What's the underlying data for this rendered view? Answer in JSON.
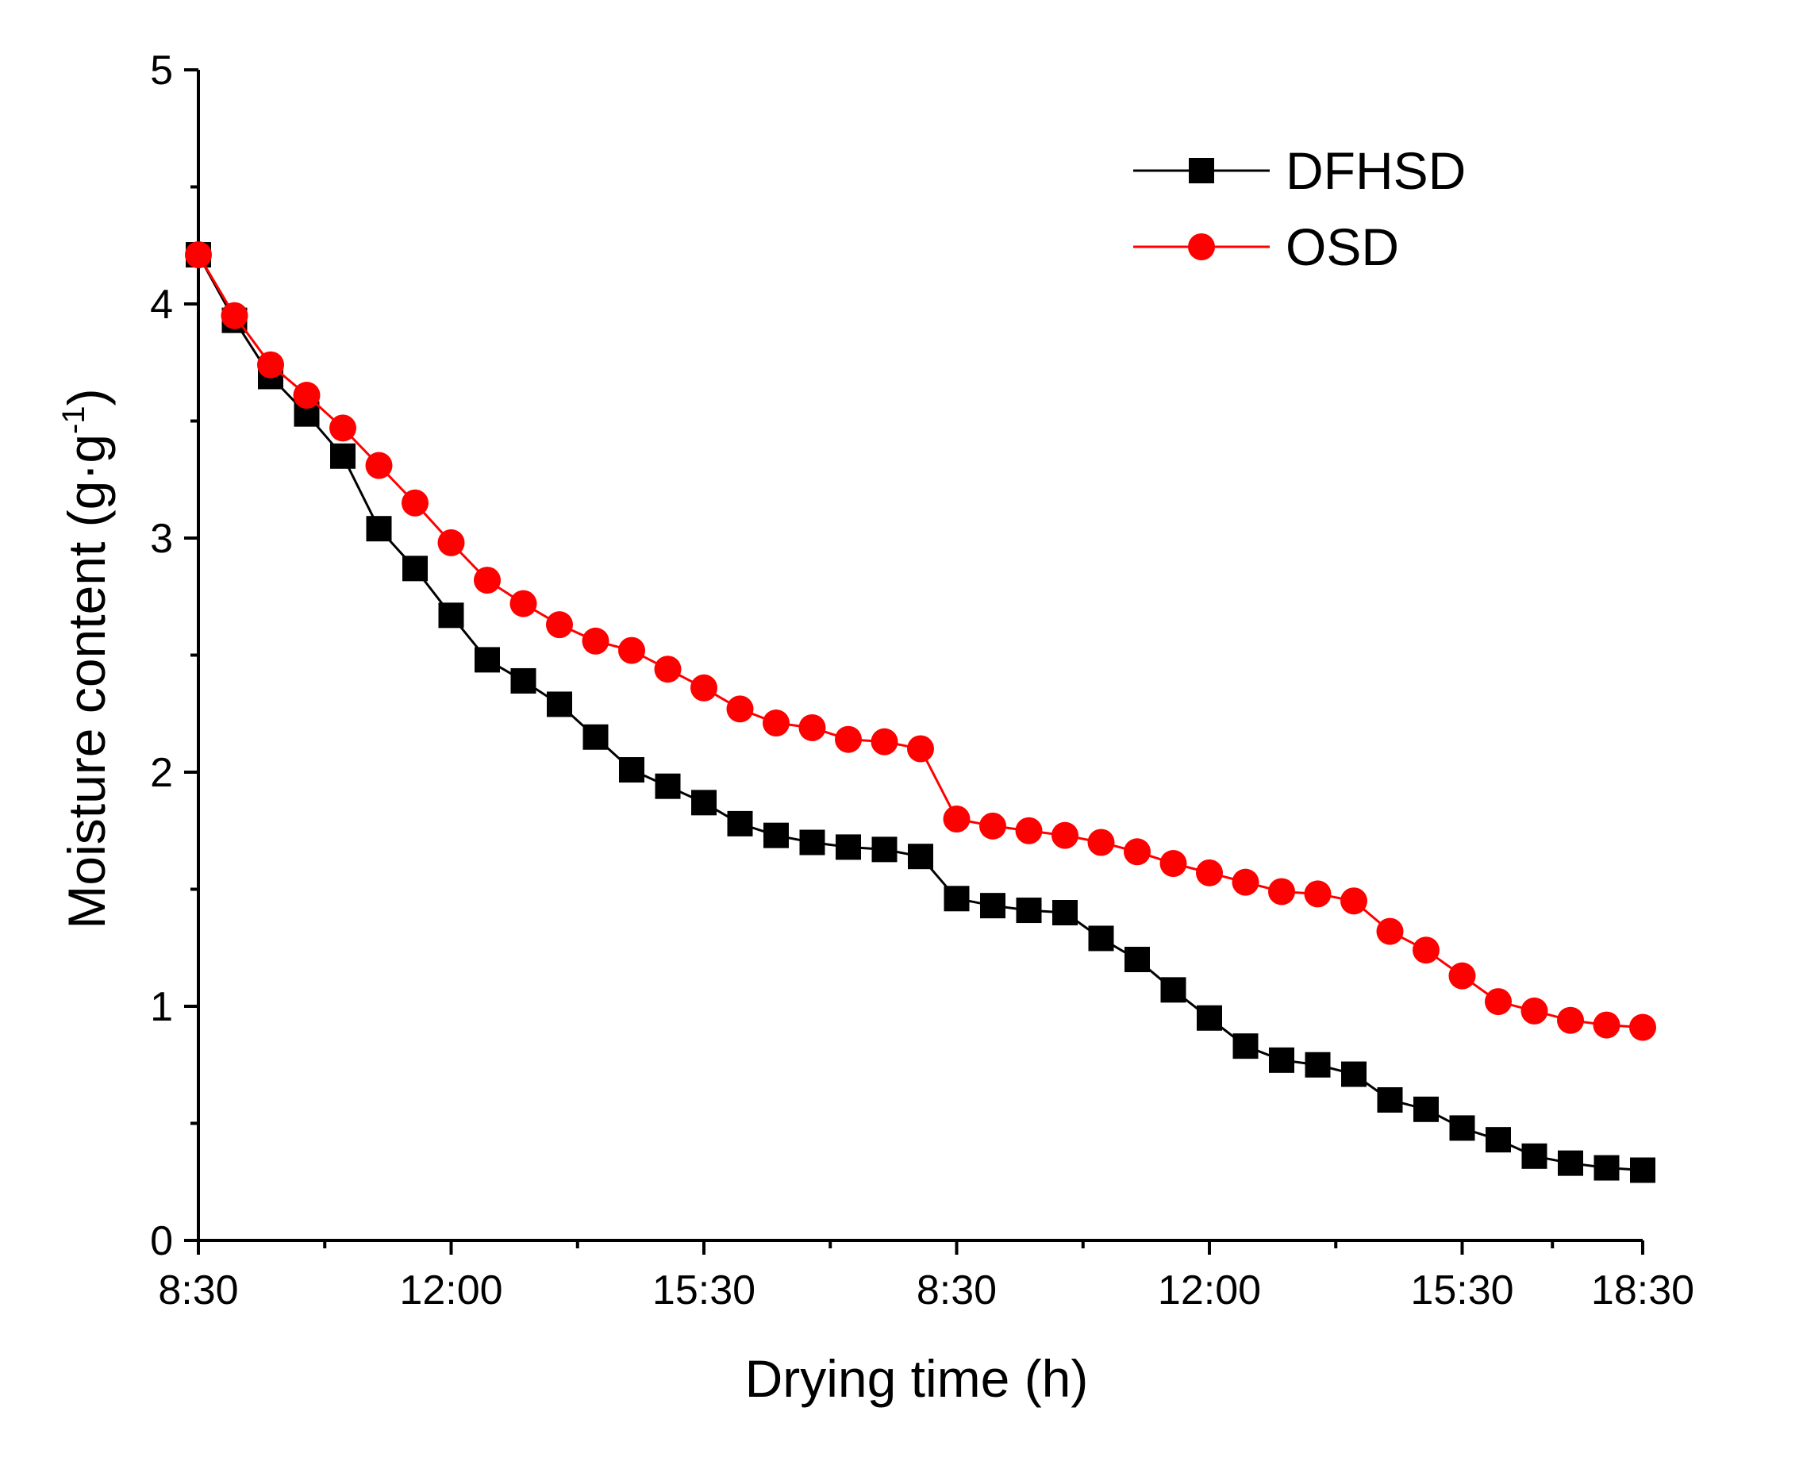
{
  "chart_data": {
    "type": "line",
    "xlabel": "Drying time (h)",
    "ylabel_main": "Moisture content (g·g",
    "ylabel_sup": "-1",
    "ylabel_close": ")",
    "ylim": [
      0,
      5
    ],
    "yticks": [
      "0",
      "1",
      "2",
      "3",
      "4",
      "5"
    ],
    "xticks": [
      "8:30",
      "12:00",
      "15:30",
      "8:30",
      "12:00",
      "15:30",
      "18:30"
    ],
    "xlim": [
      0,
      20
    ],
    "xtick_positions": [
      0,
      3.5,
      7,
      10.5,
      14,
      17.5,
      20
    ],
    "legend_position": "top-right",
    "x": [
      0,
      0.5,
      1,
      1.5,
      2,
      2.5,
      3,
      3.5,
      4,
      4.5,
      5,
      5.5,
      6,
      6.5,
      7,
      7.5,
      8,
      8.5,
      9,
      9.5,
      10,
      10.5,
      11,
      11.5,
      12,
      12.5,
      13,
      13.5,
      14,
      14.5,
      15,
      15.5,
      16,
      16.5,
      17,
      17.5,
      18,
      18.5,
      19,
      19.5,
      20
    ],
    "series": [
      {
        "name": "DFHSD",
        "color": "#000000",
        "marker": "square",
        "values": [
          4.21,
          3.93,
          3.69,
          3.53,
          3.35,
          3.04,
          2.87,
          2.67,
          2.48,
          2.39,
          2.29,
          2.15,
          2.01,
          1.94,
          1.87,
          1.78,
          1.73,
          1.7,
          1.68,
          1.67,
          1.64,
          1.46,
          1.43,
          1.41,
          1.4,
          1.29,
          1.2,
          1.07,
          0.95,
          0.83,
          0.77,
          0.75,
          0.71,
          0.6,
          0.56,
          0.48,
          0.43,
          0.36,
          0.33,
          0.31,
          0.3
        ]
      },
      {
        "name": "OSD",
        "color": "#ff0000",
        "marker": "circle",
        "values": [
          4.21,
          3.95,
          3.74,
          3.61,
          3.47,
          3.31,
          3.15,
          2.98,
          2.82,
          2.72,
          2.63,
          2.56,
          2.52,
          2.44,
          2.36,
          2.27,
          2.21,
          2.19,
          2.14,
          2.13,
          2.1,
          1.8,
          1.77,
          1.75,
          1.73,
          1.7,
          1.66,
          1.61,
          1.57,
          1.53,
          1.49,
          1.48,
          1.45,
          1.32,
          1.24,
          1.13,
          1.02,
          0.98,
          0.94,
          0.92,
          0.91
        ]
      }
    ]
  }
}
